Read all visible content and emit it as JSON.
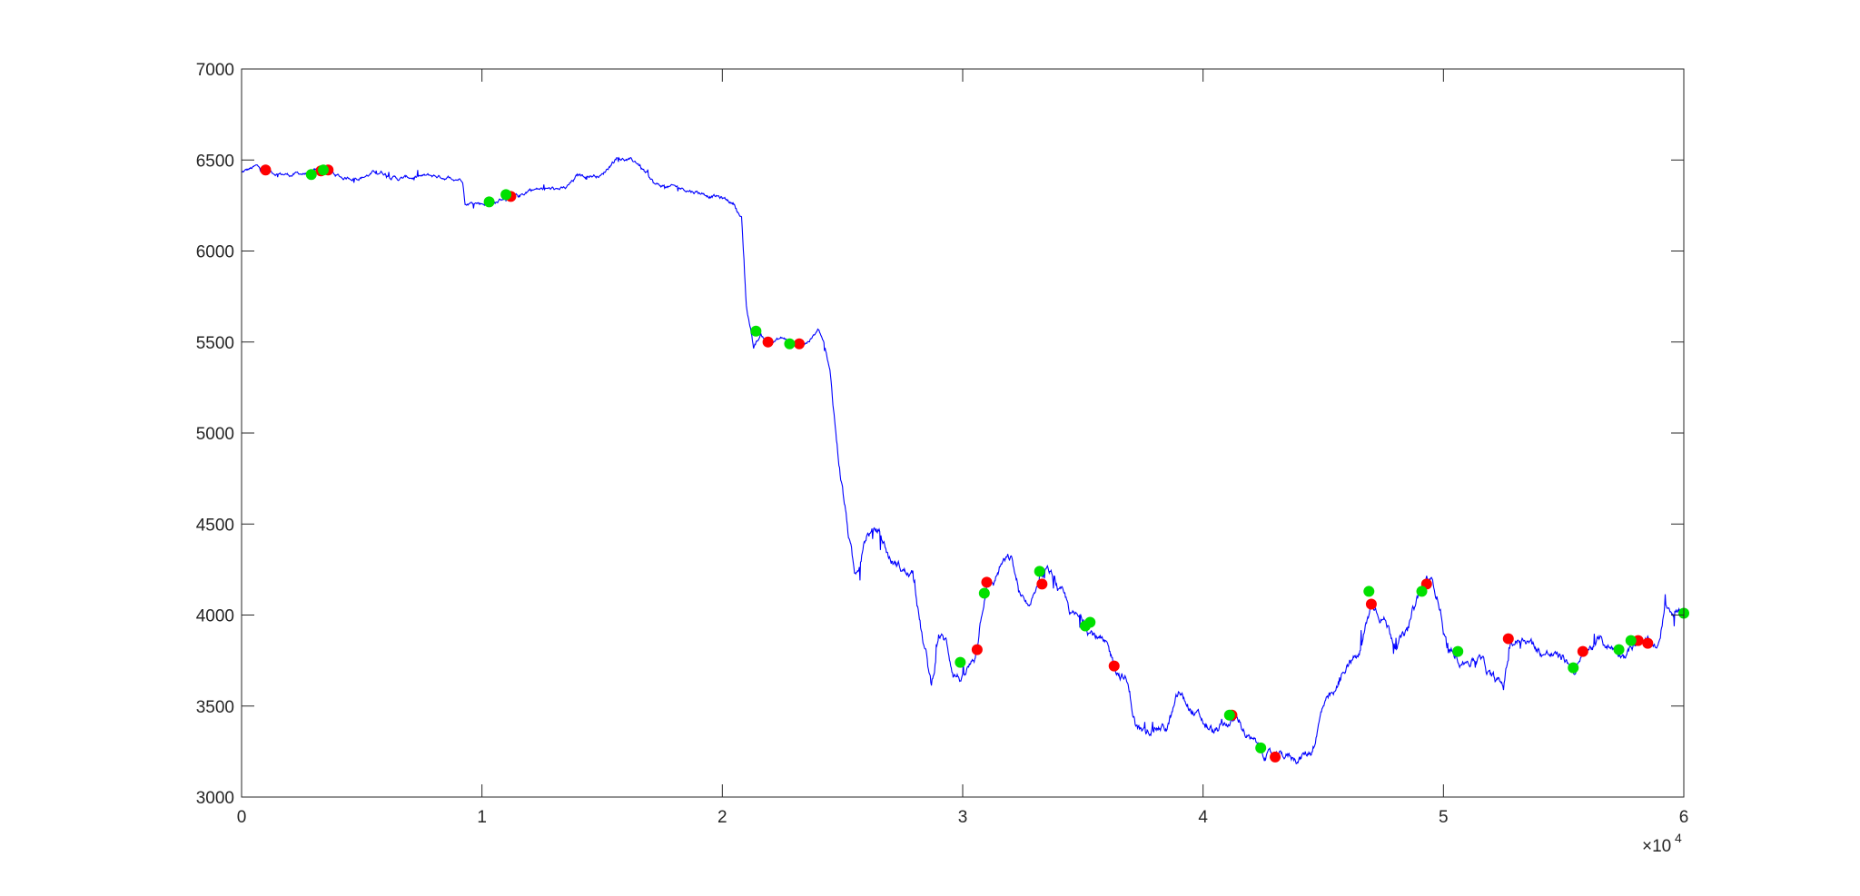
{
  "chart_data": {
    "type": "line",
    "title": "",
    "xlabel": "",
    "ylabel": "",
    "xlim": [
      0,
      60000
    ],
    "ylim": [
      3000,
      7000
    ],
    "x_tick_labels": [
      "0",
      "1",
      "2",
      "3",
      "4",
      "5",
      "6"
    ],
    "x_tick_values": [
      0,
      10000,
      20000,
      30000,
      40000,
      50000,
      60000
    ],
    "x_exponent_label": "×10",
    "x_exponent_power": "4",
    "y_tick_labels": [
      "3000",
      "3500",
      "4000",
      "4500",
      "5000",
      "5500",
      "6000",
      "6500",
      "7000"
    ],
    "y_tick_values": [
      3000,
      3500,
      4000,
      4500,
      5000,
      5500,
      6000,
      6500,
      7000
    ],
    "grid": false,
    "series": [
      {
        "color": "#0000ff",
        "anchors": [
          [
            0,
            6430
          ],
          [
            600,
            6460
          ],
          [
            1200,
            6430
          ],
          [
            2000,
            6420
          ],
          [
            3000,
            6430
          ],
          [
            3500,
            6440
          ],
          [
            4200,
            6400
          ],
          [
            5000,
            6410
          ],
          [
            5800,
            6440
          ],
          [
            6500,
            6400
          ],
          [
            8000,
            6410
          ],
          [
            9200,
            6400
          ],
          [
            9300,
            6270
          ],
          [
            10500,
            6260
          ],
          [
            11000,
            6300
          ],
          [
            11500,
            6290
          ],
          [
            12000,
            6340
          ],
          [
            13500,
            6340
          ],
          [
            14000,
            6410
          ],
          [
            15000,
            6420
          ],
          [
            15600,
            6520
          ],
          [
            16500,
            6480
          ],
          [
            17200,
            6360
          ],
          [
            18500,
            6340
          ],
          [
            19800,
            6300
          ],
          [
            20500,
            6260
          ],
          [
            20800,
            6180
          ],
          [
            21000,
            5700
          ],
          [
            21300,
            5480
          ],
          [
            21600,
            5540
          ],
          [
            22000,
            5500
          ],
          [
            22500,
            5520
          ],
          [
            23000,
            5490
          ],
          [
            23500,
            5500
          ],
          [
            24000,
            5560
          ],
          [
            24200,
            5500
          ],
          [
            24500,
            5300
          ],
          [
            24800,
            4900
          ],
          [
            25000,
            4700
          ],
          [
            25200,
            4500
          ],
          [
            25500,
            4200
          ],
          [
            26000,
            4450
          ],
          [
            26500,
            4460
          ],
          [
            27000,
            4300
          ],
          [
            27500,
            4250
          ],
          [
            28000,
            4200
          ],
          [
            28300,
            3900
          ],
          [
            28700,
            3600
          ],
          [
            29000,
            3900
          ],
          [
            29300,
            3850
          ],
          [
            29600,
            3700
          ],
          [
            30000,
            3650
          ],
          [
            30500,
            3750
          ],
          [
            30800,
            4050
          ],
          [
            31000,
            4200
          ],
          [
            31300,
            4180
          ],
          [
            31600,
            4280
          ],
          [
            32000,
            4300
          ],
          [
            32400,
            4100
          ],
          [
            32800,
            3980
          ],
          [
            33200,
            4230
          ],
          [
            33600,
            4230
          ],
          [
            34000,
            4120
          ],
          [
            34500,
            4000
          ],
          [
            35000,
            3950
          ],
          [
            35500,
            3900
          ],
          [
            36000,
            3800
          ],
          [
            36300,
            3720
          ],
          [
            36800,
            3650
          ],
          [
            37200,
            3400
          ],
          [
            37600,
            3330
          ],
          [
            38000,
            3400
          ],
          [
            38500,
            3380
          ],
          [
            39000,
            3550
          ],
          [
            39500,
            3480
          ],
          [
            40000,
            3400
          ],
          [
            40500,
            3350
          ],
          [
            41000,
            3400
          ],
          [
            41500,
            3420
          ],
          [
            42000,
            3300
          ],
          [
            42500,
            3250
          ],
          [
            43000,
            3200
          ],
          [
            43500,
            3220
          ],
          [
            44000,
            3220
          ],
          [
            44500,
            3250
          ],
          [
            45000,
            3500
          ],
          [
            45500,
            3550
          ],
          [
            46000,
            3750
          ],
          [
            46500,
            3780
          ],
          [
            47000,
            4050
          ],
          [
            47500,
            4000
          ],
          [
            48000,
            3850
          ],
          [
            48500,
            3900
          ],
          [
            49000,
            4120
          ],
          [
            49400,
            4200
          ],
          [
            49800,
            4100
          ],
          [
            50200,
            3800
          ],
          [
            50800,
            3760
          ],
          [
            51500,
            3760
          ],
          [
            52000,
            3640
          ],
          [
            52500,
            3600
          ],
          [
            52800,
            3850
          ],
          [
            53500,
            3880
          ],
          [
            54000,
            3800
          ],
          [
            54500,
            3780
          ],
          [
            55000,
            3760
          ],
          [
            55500,
            3700
          ],
          [
            56000,
            3800
          ],
          [
            56500,
            3850
          ],
          [
            57000,
            3820
          ],
          [
            57500,
            3800
          ],
          [
            58000,
            3840
          ],
          [
            58500,
            3830
          ],
          [
            59000,
            3830
          ],
          [
            59200,
            4060
          ],
          [
            60000,
            4020
          ]
        ]
      }
    ],
    "markers": [
      {
        "color": "#ff0000",
        "points": [
          [
            1000,
            6445
          ],
          [
            3300,
            6440
          ],
          [
            3600,
            6445
          ],
          [
            11200,
            6300
          ],
          [
            21900,
            5500
          ],
          [
            23200,
            5490
          ],
          [
            30600,
            3810
          ],
          [
            31000,
            4180
          ],
          [
            33300,
            4170
          ],
          [
            36300,
            3720
          ],
          [
            41200,
            3450
          ],
          [
            43000,
            3220
          ],
          [
            47000,
            4060
          ],
          [
            49300,
            4170
          ],
          [
            52700,
            3870
          ],
          [
            55800,
            3800
          ],
          [
            58100,
            3860
          ],
          [
            58500,
            3845
          ]
        ]
      },
      {
        "color": "#00e000",
        "points": [
          [
            2900,
            6420
          ],
          [
            3400,
            6445
          ],
          [
            10300,
            6270
          ],
          [
            11000,
            6310
          ],
          [
            21400,
            5560
          ],
          [
            22800,
            5490
          ],
          [
            29900,
            3740
          ],
          [
            30900,
            4120
          ],
          [
            33200,
            4240
          ],
          [
            35100,
            3940
          ],
          [
            35300,
            3960
          ],
          [
            41100,
            3450
          ],
          [
            42400,
            3270
          ],
          [
            46900,
            4130
          ],
          [
            49100,
            4130
          ],
          [
            50600,
            3800
          ],
          [
            55400,
            3710
          ],
          [
            57300,
            3810
          ],
          [
            57800,
            3860
          ],
          [
            60000,
            4010
          ]
        ]
      }
    ]
  }
}
